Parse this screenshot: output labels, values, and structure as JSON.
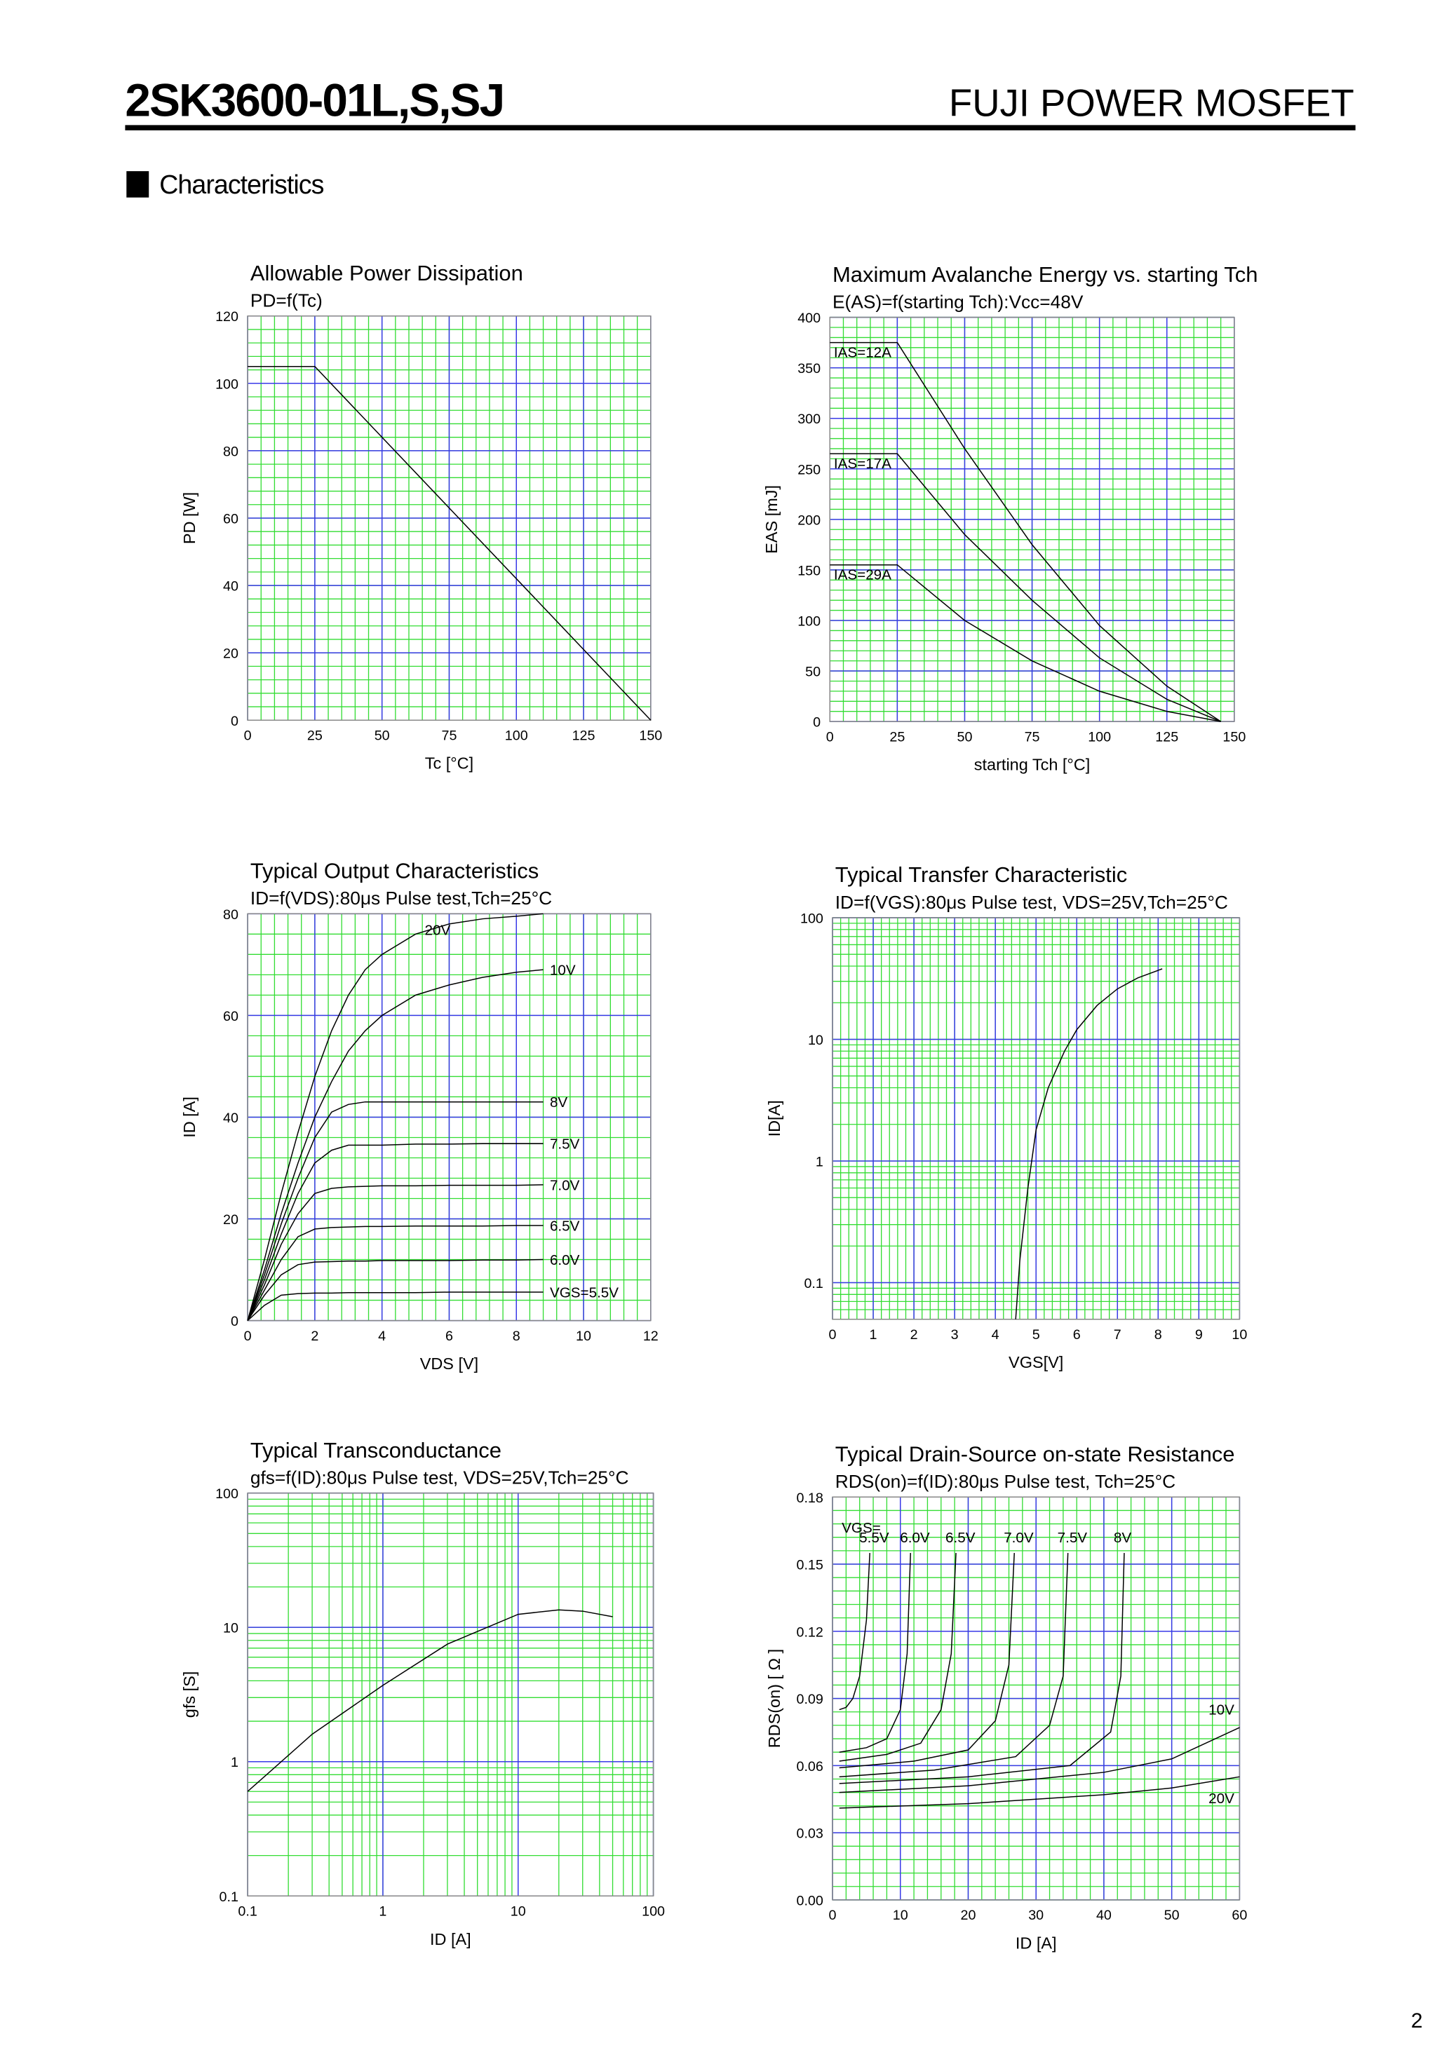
{
  "header": {
    "part_number": "2SK3600-01L,S,SJ",
    "brand": "FUJI POWER MOSFET"
  },
  "section": "Characteristics",
  "page_number": "2",
  "chart_data": [
    {
      "type": "line",
      "title": "Allowable Power Dissipation",
      "subtitle": "PD=f(Tc)",
      "x_label": "Tc [°C]",
      "y_label": "PD [W]",
      "x": [
        0,
        25,
        150
      ],
      "values": [
        105,
        105,
        0
      ],
      "color": "#000000",
      "xlim": [
        0,
        150
      ],
      "xticks": [
        0,
        25,
        50,
        75,
        100,
        125,
        150
      ],
      "ylim": [
        0,
        120
      ],
      "yticks": [
        0,
        20,
        40,
        60,
        80,
        100,
        120
      ],
      "grid": true,
      "grid_color": "#33dd33",
      "major_grid_color": "#3a3ae8"
    },
    {
      "type": "line",
      "title": "Maximum Avalanche Energy vs. starting Tch",
      "subtitle": "E(AS)=f(starting Tch):Vcc=48V",
      "x_label": "starting Tch [°C]",
      "y_label": "EAS [mJ]",
      "x": [
        0,
        25,
        50,
        75,
        100,
        125,
        145
      ],
      "series": [
        {
          "name": "IAS=12A",
          "color": "#000000",
          "values": [
            375,
            375,
            270,
            175,
            95,
            35,
            0
          ]
        },
        {
          "name": "IAS=17A",
          "color": "#000000",
          "values": [
            265,
            265,
            185,
            120,
            63,
            22,
            0
          ]
        },
        {
          "name": "IAS=29A",
          "color": "#000000",
          "values": [
            155,
            155,
            100,
            60,
            30,
            10,
            0
          ]
        }
      ],
      "xlim": [
        0,
        150
      ],
      "xticks": [
        0,
        25,
        50,
        75,
        100,
        125,
        150
      ],
      "ylim": [
        0,
        400
      ],
      "yticks": [
        0,
        50,
        100,
        150,
        200,
        250,
        300,
        350,
        400
      ],
      "grid": true,
      "grid_color": "#33dd33",
      "major_grid_color": "#3a3ae8"
    },
    {
      "type": "line",
      "title": "Typical Output Characteristics",
      "subtitle": "ID=f(VDS):80μs Pulse test,Tch=25°C",
      "x_label": "VDS [V]",
      "y_label": "ID [A]",
      "x": [
        0,
        0.5,
        1,
        1.5,
        2,
        2.5,
        3,
        3.5,
        4,
        5,
        6,
        7,
        8,
        8.8
      ],
      "series": [
        {
          "name": "20V",
          "color": "#000000",
          "values": [
            0,
            12,
            25,
            37,
            48,
            57,
            64,
            69,
            72,
            76,
            78,
            79,
            79.5,
            80
          ]
        },
        {
          "name": "10V",
          "color": "#000000",
          "values": [
            0,
            10,
            21,
            31,
            40,
            47,
            53,
            57,
            60,
            64,
            66,
            67.5,
            68.5,
            69
          ]
        },
        {
          "name": "8V",
          "color": "#000000",
          "values": [
            0,
            9,
            19,
            28,
            36,
            41,
            42.5,
            43,
            43,
            43,
            43,
            43,
            43,
            43
          ]
        },
        {
          "name": "7.5V",
          "color": "#000000",
          "values": [
            0,
            8,
            17,
            25,
            31,
            33.5,
            34.5,
            34.5,
            34.5,
            34.7,
            34.7,
            34.8,
            34.8,
            34.8
          ]
        },
        {
          "name": "7.0V",
          "color": "#000000",
          "values": [
            0,
            7,
            15,
            21,
            25,
            26,
            26.3,
            26.4,
            26.5,
            26.5,
            26.6,
            26.6,
            26.6,
            26.7
          ]
        },
        {
          "name": "6.5V",
          "color": "#000000",
          "values": [
            0,
            6,
            12,
            16.5,
            18,
            18.3,
            18.4,
            18.5,
            18.5,
            18.6,
            18.6,
            18.6,
            18.7,
            18.7
          ]
        },
        {
          "name": "6.0V",
          "color": "#000000",
          "values": [
            0,
            5,
            9,
            11,
            11.5,
            11.6,
            11.7,
            11.7,
            11.8,
            11.8,
            11.8,
            11.9,
            11.9,
            12
          ]
        },
        {
          "name": "VGS=5.5V",
          "color": "#000000",
          "values": [
            0,
            3,
            5,
            5.3,
            5.4,
            5.4,
            5.5,
            5.5,
            5.5,
            5.5,
            5.6,
            5.6,
            5.6,
            5.6
          ]
        }
      ],
      "xlim": [
        0,
        12
      ],
      "xticks": [
        0,
        2,
        4,
        6,
        8,
        10,
        12
      ],
      "ylim": [
        0,
        80
      ],
      "yticks": [
        0,
        20,
        40,
        60,
        80
      ],
      "grid": true,
      "grid_color": "#33dd33",
      "major_grid_color": "#3a3ae8"
    },
    {
      "type": "line",
      "title": "Typical Transfer Characteristic",
      "subtitle": "ID=f(VGS):80μs Pulse test, VDS=25V,Tch=25°C",
      "x_label": "VGS[V]",
      "y_label": "ID[A]",
      "x": [
        4.5,
        4.6,
        4.8,
        5,
        5.3,
        5.7,
        6,
        6.5,
        7,
        7.5,
        8.1
      ],
      "values": [
        0.05,
        0.15,
        0.6,
        1.8,
        4,
        8,
        12,
        19,
        26,
        32,
        38
      ],
      "color": "#000000",
      "ylog": true,
      "xlim": [
        0,
        10
      ],
      "xticks": [
        0,
        1,
        2,
        3,
        4,
        5,
        6,
        7,
        8,
        9,
        10
      ],
      "ylim": [
        0.05,
        100
      ],
      "yticks": [
        0.1,
        1,
        10,
        100
      ],
      "grid": true,
      "grid_color": "#33dd33",
      "major_grid_color": "#3a3ae8"
    },
    {
      "type": "line",
      "title": "Typical Transconductance",
      "subtitle": "gfs=f(ID):80μs Pulse test, VDS=25V,Tch=25°C",
      "x_label": "ID [A]",
      "y_label": "gfs [S]",
      "x": [
        0.1,
        0.3,
        1,
        3,
        10,
        20,
        30,
        50
      ],
      "values": [
        0.6,
        1.6,
        3.7,
        7.5,
        12.5,
        13.5,
        13.2,
        12
      ],
      "color": "#000000",
      "xlog": true,
      "ylog": true,
      "xlim": [
        0.1,
        100
      ],
      "xticks": [
        0.1,
        1,
        10,
        100
      ],
      "ylim": [
        0.1,
        100
      ],
      "yticks": [
        0.1,
        1,
        10,
        100
      ],
      "grid": true,
      "grid_color": "#33dd33",
      "major_grid_color": "#3a3ae8"
    },
    {
      "type": "line",
      "title": "Typical Drain-Source on-state Resistance",
      "subtitle": "RDS(on)=f(ID):80μs Pulse test, Tch=25°C",
      "x_label": "ID [A]",
      "y_label": "RDS(on) [ Ω ]",
      "annotations": [
        "VGS="
      ],
      "series": [
        {
          "name": "5.5V",
          "color": "#000000",
          "x": [
            1,
            2,
            3,
            4,
            5,
            5.5
          ],
          "values": [
            0.085,
            0.086,
            0.09,
            0.1,
            0.125,
            0.155
          ]
        },
        {
          "name": "6.0V",
          "color": "#000000",
          "x": [
            1,
            5,
            8,
            10,
            11,
            11.5
          ],
          "values": [
            0.066,
            0.068,
            0.072,
            0.085,
            0.11,
            0.155
          ]
        },
        {
          "name": "6.5V",
          "color": "#000000",
          "x": [
            1,
            8,
            13,
            16,
            17.5,
            18.2
          ],
          "values": [
            0.062,
            0.065,
            0.07,
            0.085,
            0.11,
            0.155
          ]
        },
        {
          "name": "7.0V",
          "color": "#000000",
          "x": [
            1,
            12,
            20,
            24,
            26,
            26.8
          ],
          "values": [
            0.059,
            0.062,
            0.067,
            0.08,
            0.105,
            0.155
          ]
        },
        {
          "name": "7.5V",
          "color": "#000000",
          "x": [
            1,
            15,
            27,
            32,
            34,
            34.7
          ],
          "values": [
            0.055,
            0.058,
            0.064,
            0.078,
            0.1,
            0.155
          ]
        },
        {
          "name": "8V",
          "color": "#000000",
          "x": [
            1,
            20,
            35,
            41,
            42.5,
            43
          ],
          "values": [
            0.052,
            0.055,
            0.06,
            0.075,
            0.1,
            0.155
          ]
        },
        {
          "name": "10V",
          "color": "#000000",
          "x": [
            1,
            20,
            40,
            50,
            60
          ],
          "values": [
            0.048,
            0.051,
            0.057,
            0.063,
            0.077
          ]
        },
        {
          "name": "20V",
          "color": "#000000",
          "x": [
            1,
            20,
            40,
            50,
            60
          ],
          "values": [
            0.041,
            0.043,
            0.047,
            0.05,
            0.055
          ]
        }
      ],
      "xlim": [
        0,
        60
      ],
      "xticks": [
        0,
        10,
        20,
        30,
        40,
        50,
        60
      ],
      "ylim": [
        0,
        0.18
      ],
      "yticks": [
        {
          "value": 0,
          "label": "0.00"
        },
        0.03,
        0.06,
        0.09,
        0.12,
        0.15,
        0.18
      ],
      "grid": true,
      "grid_color": "#33dd33",
      "major_grid_color": "#3a3ae8"
    }
  ]
}
